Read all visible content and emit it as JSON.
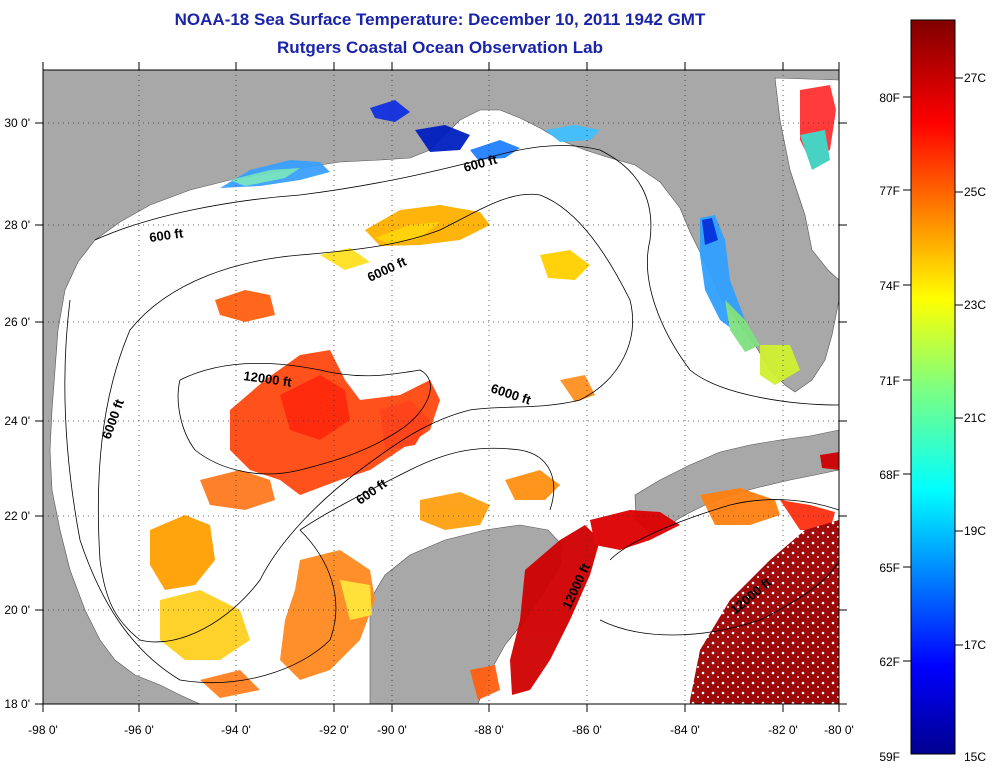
{
  "title_line1": "NOAA-18 Sea Surface Temperature:  December 10, 2011 1942 GMT",
  "title_line2": "Rutgers Coastal Ocean Observation Lab",
  "map": {
    "lon_range": [
      -98,
      -80
    ],
    "lat_range": [
      18,
      31
    ],
    "x_ticks": [
      "-98 0'",
      "-96 0'",
      "-94 0'",
      "-92 0'",
      "-90 0'",
      "-88 0'",
      "-86 0'",
      "-84 0'",
      "-82 0'",
      "-80 0'"
    ],
    "y_ticks": [
      "18 0'",
      "20 0'",
      "22 0'",
      "24 0'",
      "26 0'",
      "28 0'",
      "30 0'"
    ],
    "contour_labels": [
      "600 ft",
      "600 ft",
      "600 ft",
      "6000 ft",
      "6000 ft",
      "6000 ft",
      "12000 ft",
      "12000 ft",
      "12000 ft"
    ],
    "land_color": "#a8a8a8",
    "grid": "dotted"
  },
  "colorbar": {
    "fahrenheit_labels": [
      "80F",
      "77F",
      "74F",
      "71F",
      "68F",
      "65F",
      "62F",
      "59F"
    ],
    "celsius_labels": [
      "27C",
      "25C",
      "23C",
      "21C",
      "19C",
      "17C",
      "15C"
    ],
    "range_celsius": [
      15,
      28
    ]
  }
}
